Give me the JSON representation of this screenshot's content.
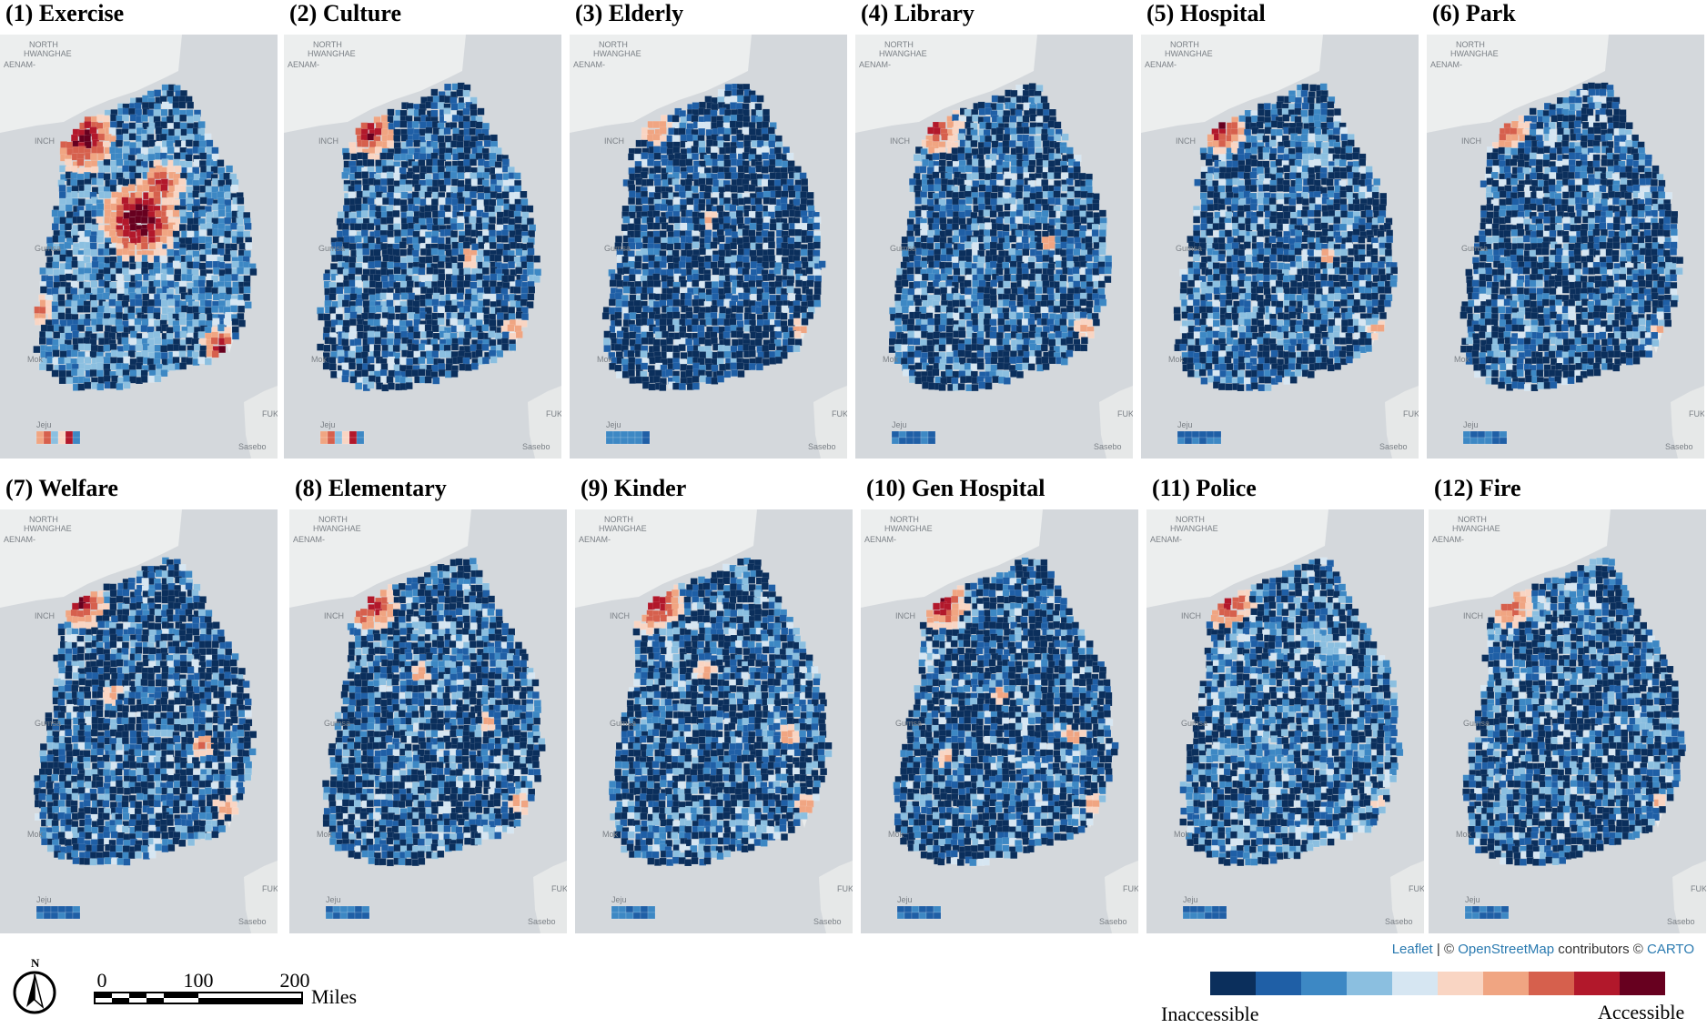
{
  "panels": [
    {
      "title": "(1) Exercise"
    },
    {
      "title": "(2) Culture"
    },
    {
      "title": "(3) Elderly"
    },
    {
      "title": "(4) Library"
    },
    {
      "title": "(5) Hospital"
    },
    {
      "title": "(6) Park"
    },
    {
      "title": "(7) Welfare"
    },
    {
      "title": "(8) Elementary"
    },
    {
      "title": "(9) Kinder"
    },
    {
      "title": "(10) Gen Hospital"
    },
    {
      "title": "(11) Police"
    },
    {
      "title": "(12) Fire"
    }
  ],
  "basemap_labels": {
    "north": "NORTH",
    "hwanghae": "HWANGHAE",
    "aenam": "AENAM-",
    "inch": "INCH",
    "gumsan": "Gumsa",
    "mok": "Mok",
    "jeju": "Jeju",
    "fuk": "FUK",
    "sasebo": "Sasebo"
  },
  "scale_bar": {
    "north_label": "N",
    "ticks": [
      "0",
      "100",
      "200"
    ],
    "unit": "Miles"
  },
  "attribution": {
    "leaflet": "Leaflet",
    "sep": " | © ",
    "osm": "OpenStreetMap",
    "contributors": " contributors © ",
    "carto": "CARTO"
  },
  "legend": {
    "low_label": "Inaccessible",
    "high_label": "Accessible",
    "colors": [
      "#0b2f5c",
      "#1f5fa6",
      "#3d88c4",
      "#8bbfe0",
      "#d6e6f2",
      "#f9d5c3",
      "#f0a582",
      "#d6604d",
      "#b2182b",
      "#67001f"
    ]
  },
  "colors": {
    "map_background": "#d4d8dc",
    "land_north": "#eceeee",
    "deep_blue": "#0b2f5c"
  }
}
